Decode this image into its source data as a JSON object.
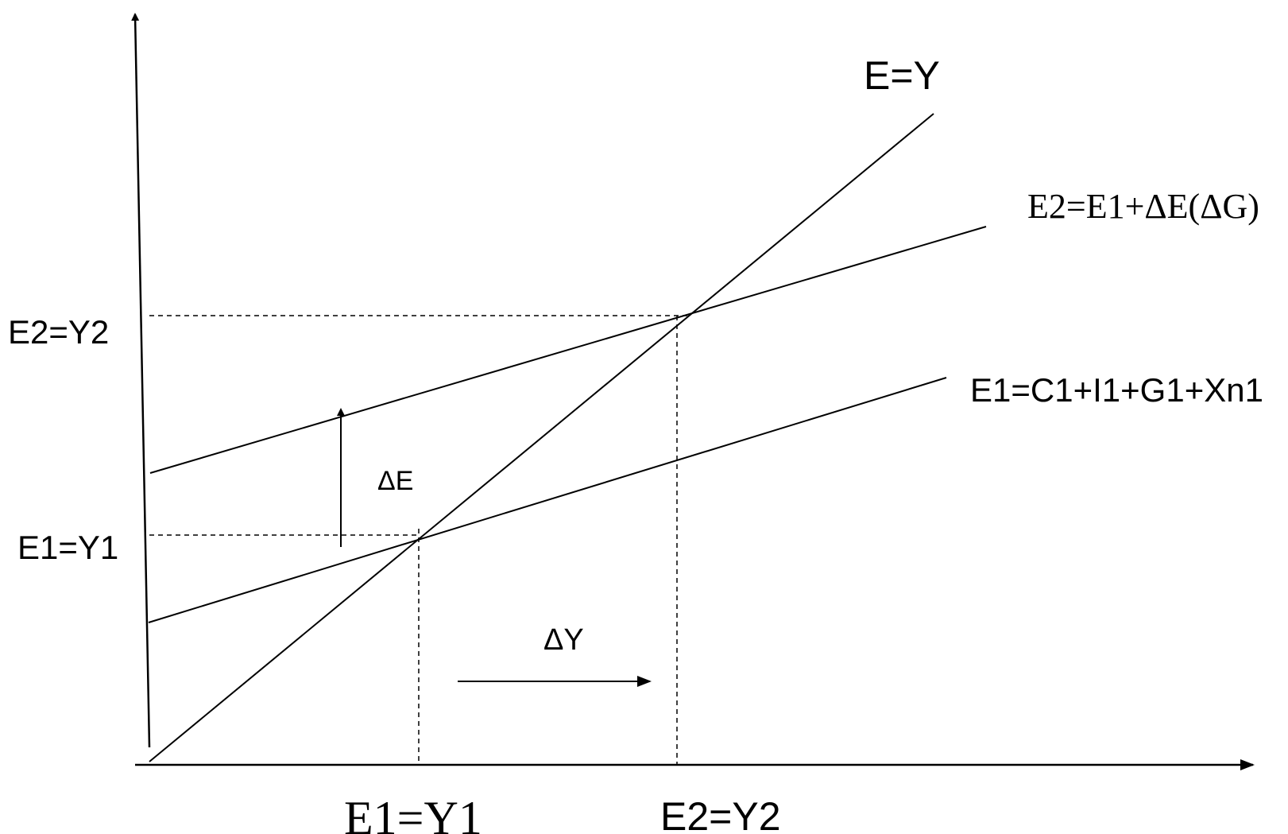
{
  "labels": {
    "ey_line": "E=Y",
    "e2_line": "E2=E1+ΔE(ΔG)",
    "e1_line": "E1=C1+I1+G1+Xn1",
    "y_tick_e2": "E2=Y2",
    "y_tick_e1": "E1=Y1",
    "x_tick_e1": "E1=Y1",
    "x_tick_e2": "E2=Y2",
    "delta_e": "ΔE",
    "delta_y": "ΔY"
  },
  "colors": {
    "stroke": "#000000",
    "background": "#ffffff"
  }
}
